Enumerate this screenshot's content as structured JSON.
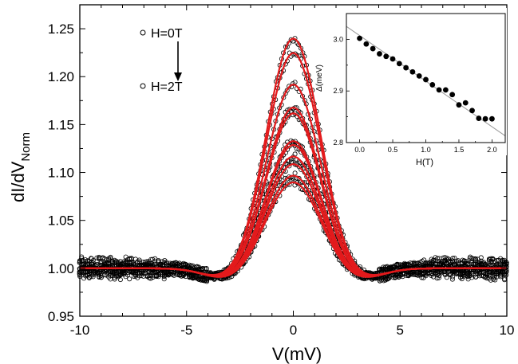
{
  "chart_data": [
    {
      "type": "scatter",
      "xlabel": "V(mV)",
      "ylabel_main": "dI/dV",
      "ylabel_sub": "Norm",
      "xlim": [
        -10,
        10
      ],
      "ylim": [
        0.95,
        1.275
      ],
      "xticks": [
        -10,
        -5,
        0,
        5,
        10
      ],
      "yticks": [
        0.95,
        1.0,
        1.05,
        1.1,
        1.15,
        1.2,
        1.25
      ],
      "ytick_labels": [
        "0.95",
        "1.00",
        "1.05",
        "1.10",
        "1.15",
        "1.20",
        "1.25"
      ],
      "legend": [
        {
          "label": "H=0T",
          "marker": "open-circle"
        },
        {
          "label": "H=2T",
          "marker": "open-circle"
        }
      ],
      "legend_arrow": true,
      "legend_position": "top-left",
      "grid": false,
      "series_peaks": [
        1.24,
        1.225,
        1.192,
        1.168,
        1.162,
        1.133,
        1.129,
        1.117,
        1.109,
        1.097,
        1.09
      ],
      "peak_center_mV": 0,
      "peak_width_mV": 1.25,
      "baseline": 1.0,
      "dip_depth_at_3mV": 0.012,
      "fit_color": "#e31a1c",
      "data_marker_color": "#000000"
    },
    {
      "type": "scatter",
      "xlabel": "H(T)",
      "ylabel": "Δ(meV)",
      "xlim": [
        -0.2,
        2.2
      ],
      "ylim": [
        2.8,
        3.05
      ],
      "xticks": [
        0.0,
        0.5,
        1.0,
        1.5,
        2.0
      ],
      "xtick_labels": [
        "0.0",
        "0.5",
        "1.0",
        "1.5",
        "2.0"
      ],
      "yticks": [
        2.8,
        2.9,
        3.0
      ],
      "ytick_labels": [
        "2.8",
        "2.9",
        "3.0"
      ],
      "x": [
        0.0,
        0.1,
        0.2,
        0.3,
        0.4,
        0.5,
        0.6,
        0.7,
        0.8,
        0.9,
        1.0,
        1.1,
        1.2,
        1.3,
        1.4,
        1.5,
        1.6,
        1.7,
        1.8,
        1.9,
        2.0
      ],
      "y": [
        3.002,
        2.991,
        2.982,
        2.972,
        2.967,
        2.962,
        2.953,
        2.945,
        2.937,
        2.929,
        2.922,
        2.912,
        2.902,
        2.902,
        2.893,
        2.873,
        2.877,
        2.862,
        2.847,
        2.846,
        2.846
      ],
      "fit_line": {
        "x": [
          -0.2,
          2.2
        ],
        "y": [
          3.025,
          2.813
        ],
        "color": "#999999"
      }
    }
  ]
}
